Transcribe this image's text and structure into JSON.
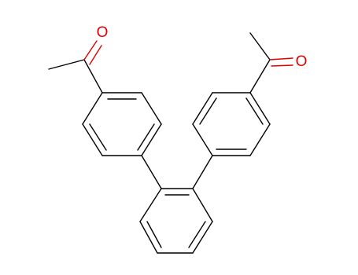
{
  "molecule": {
    "atoms": [
      {
        "label": "O"
      },
      {
        "label": "O"
      }
    ]
  }
}
